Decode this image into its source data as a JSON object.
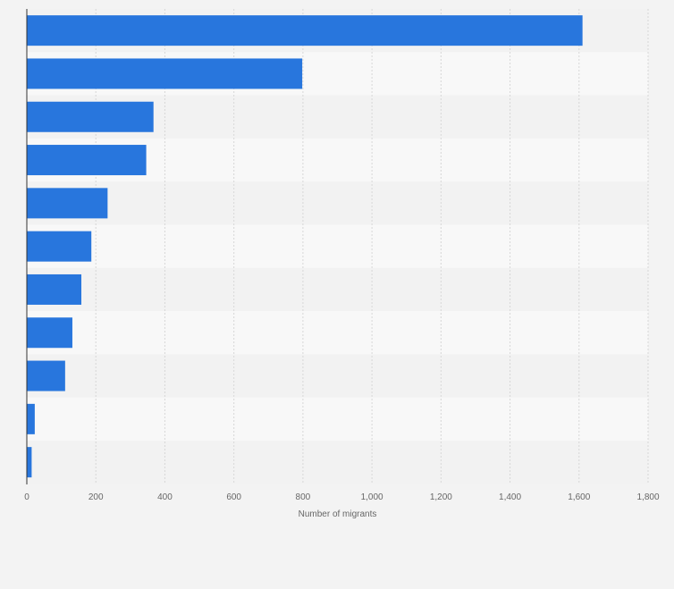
{
  "chart_data": {
    "type": "bar",
    "orientation": "horizontal",
    "title": "",
    "categories": [
      "",
      "",
      "",
      "",
      "",
      "",
      "",
      "",
      "",
      "",
      ""
    ],
    "series": [
      {
        "name": "Number of migrants",
        "values": [
          1610,
          798,
          367,
          346,
          234,
          187,
          158,
          132,
          111,
          23,
          14
        ]
      }
    ],
    "xlabel": "Number of migrants",
    "ylabel": "",
    "xlim": [
      0,
      1800
    ],
    "x_ticks": [
      0,
      200,
      400,
      600,
      800,
      1000,
      1200,
      1400,
      1600,
      1800
    ],
    "x_tick_labels": [
      "0",
      "200",
      "400",
      "600",
      "800",
      "1,000",
      "1,200",
      "1,400",
      "1,600",
      "1,800"
    ],
    "grid": true,
    "legend": "none",
    "colors": {
      "bar": "#2876dd",
      "page_background": "#f3f3f3",
      "band_light": "#f8f8f8",
      "band_dark": "#f2f2f2",
      "gridline": "#d7d7d7",
      "axis": "#333333",
      "tick_text": "#666666"
    }
  }
}
